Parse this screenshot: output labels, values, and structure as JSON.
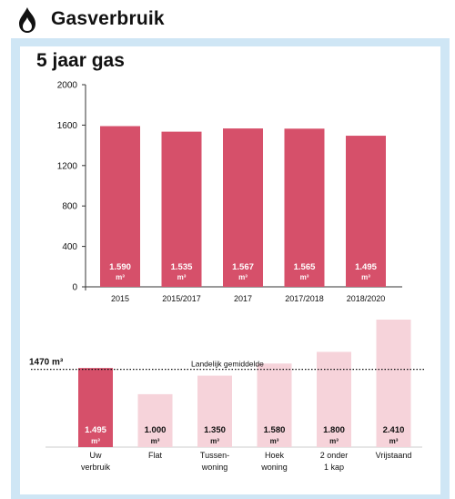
{
  "header": {
    "title": "Gasverbruik",
    "icon": "flame-icon"
  },
  "colors": {
    "bar_primary": "#d6506a",
    "bar_light": "#f6d3da",
    "panel_bg": "#cfe6f5"
  },
  "chart_data": [
    {
      "type": "bar",
      "title": "5 jaar gas",
      "categories": [
        "2015",
        "2015/2017",
        "2017",
        "2017/2018",
        "2018/2020"
      ],
      "values": [
        1590,
        1535,
        1567,
        1565,
        1495
      ],
      "value_labels": [
        "1.590",
        "1.535",
        "1.567",
        "1.565",
        "1.495"
      ],
      "unit": "m³",
      "ylim": [
        0,
        2000
      ],
      "yticks": [
        "0",
        "400",
        "800",
        "1200",
        "1600",
        "2000"
      ],
      "xlabel": "",
      "ylabel": "",
      "grid": false
    },
    {
      "type": "bar",
      "categories": [
        "Uw\nverbruik",
        "Flat",
        "Tussen-\nwoning",
        "Hoek\nwoning",
        "2 onder\n1 kap",
        "Vrijstaand"
      ],
      "values": [
        1495,
        1000,
        1350,
        1580,
        1800,
        2410
      ],
      "value_labels": [
        "1.495",
        "1.000",
        "1.350",
        "1.580",
        "1.800",
        "2.410"
      ],
      "unit": "m³",
      "highlight_index": 0,
      "reference_line": {
        "value": 1470,
        "label": "1470 m³",
        "caption": "Landelijk gemiddelde",
        "style": "dotted"
      }
    }
  ]
}
